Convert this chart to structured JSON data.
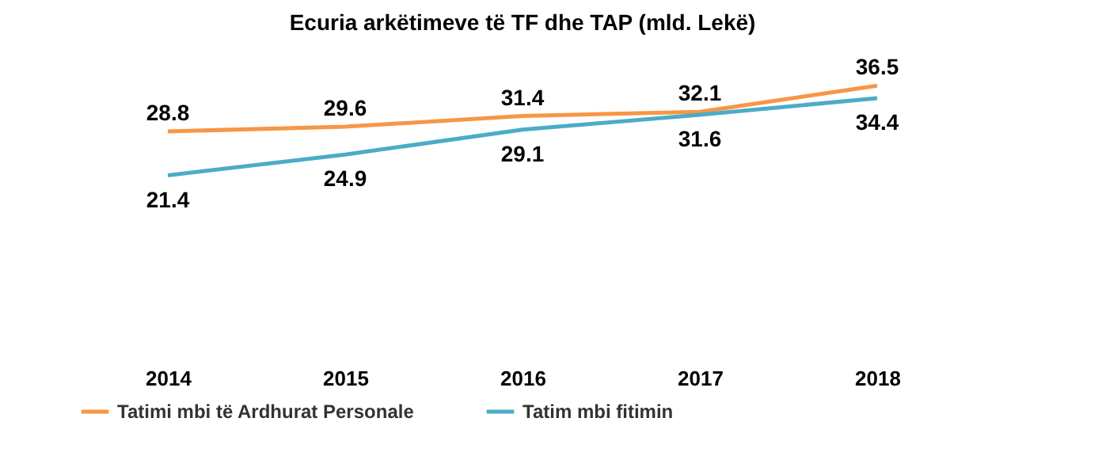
{
  "chart_data": {
    "type": "line",
    "title": "Ecuria arkëtimeve të TF dhe TAP (mld. Lekë)",
    "categories": [
      "2014",
      "2015",
      "2016",
      "2017",
      "2018"
    ],
    "series": [
      {
        "name": "Tatimi mbi të Ardhurat Personale",
        "color": "#f79646",
        "values": [
          28.8,
          29.6,
          31.4,
          32.1,
          36.5
        ]
      },
      {
        "name": "Tatim mbi fitimin",
        "color": "#4bacc6",
        "values": [
          21.4,
          24.9,
          29.1,
          31.6,
          34.4
        ]
      }
    ],
    "data_labels": true,
    "grid": false,
    "legend": "bottom",
    "tick_labels": "x"
  }
}
